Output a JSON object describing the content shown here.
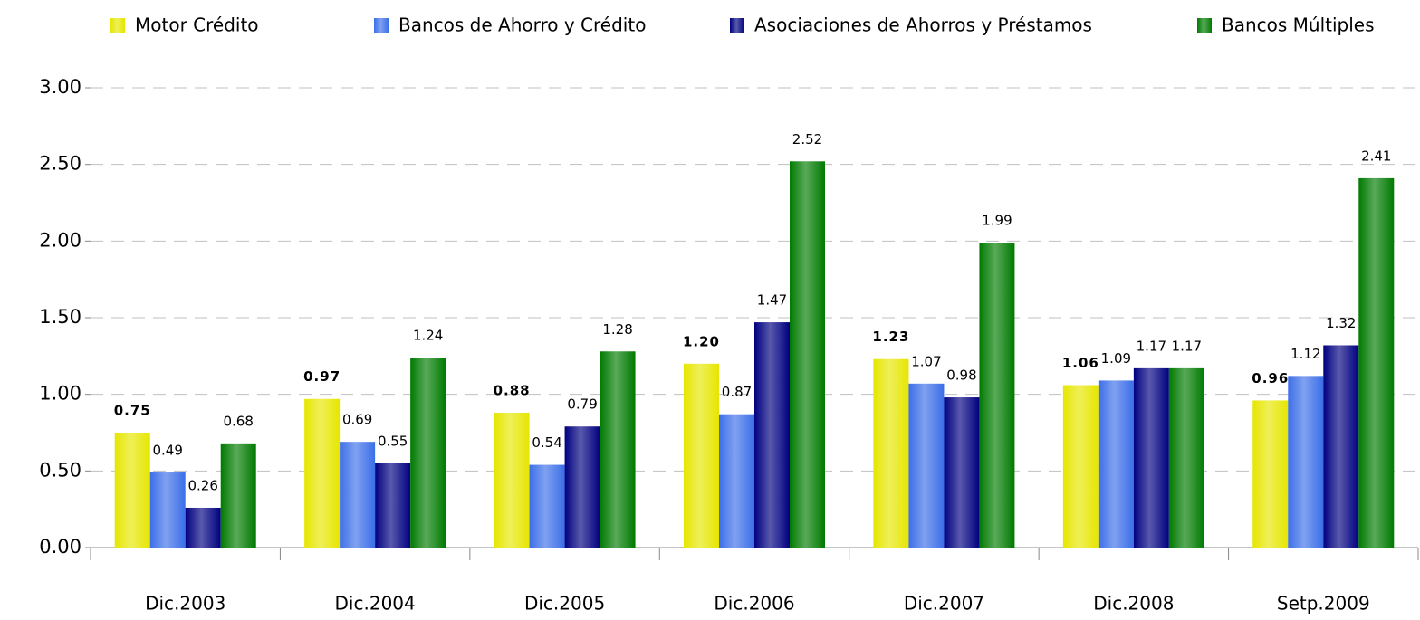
{
  "chart_data": {
    "type": "bar",
    "categories": [
      "Dic.2003",
      "Dic.2004",
      "Dic.2005",
      "Dic.2006",
      "Dic.2007",
      "Dic.2008",
      "Setp.2009"
    ],
    "series": [
      {
        "name": "Motor Crédito",
        "color": "#e6e600",
        "values": [
          0.75,
          0.97,
          0.88,
          1.2,
          1.23,
          1.06,
          0.96
        ],
        "value_labels": [
          "0.75",
          "0.97",
          "0.88",
          "1.20",
          "1.23",
          "1.06",
          "0.96"
        ]
      },
      {
        "name": "Bancos de Ahorro y Crédito",
        "color": "#3b6ee8",
        "values": [
          0.49,
          0.69,
          0.54,
          0.87,
          1.07,
          1.09,
          1.12
        ],
        "value_labels": [
          "0.49",
          "0.69",
          "0.54",
          "0.87",
          "1.07",
          "1.09",
          "1.12"
        ]
      },
      {
        "name": "Asociaciones de Ahorros y Préstamos",
        "color": "#000080",
        "values": [
          0.26,
          0.55,
          0.79,
          1.47,
          0.98,
          1.17,
          1.32
        ],
        "value_labels": [
          "0.26",
          "0.55",
          "0.79",
          "1.47",
          "0.98",
          "1.17",
          "1.32"
        ]
      },
      {
        "name": "Bancos Múltiples",
        "color": "#007a00",
        "values": [
          0.68,
          1.24,
          1.28,
          2.52,
          1.99,
          1.17,
          2.41
        ],
        "value_labels": [
          "0.68",
          "1.24",
          "1.28",
          "2.52",
          "1.99",
          "1.17",
          "2.41"
        ]
      }
    ],
    "ylim": [
      0,
      3
    ],
    "yticks": [
      {
        "value": 0,
        "label": "0.00"
      },
      {
        "value": 0.5,
        "label": "0.50"
      },
      {
        "value": 1,
        "label": "1.00"
      },
      {
        "value": 1.5,
        "label": "1.50"
      },
      {
        "value": 2,
        "label": "2.00"
      },
      {
        "value": 2.5,
        "label": "2.50"
      },
      {
        "value": 3,
        "label": "3.00"
      }
    ],
    "grid": true,
    "legend": "top"
  }
}
